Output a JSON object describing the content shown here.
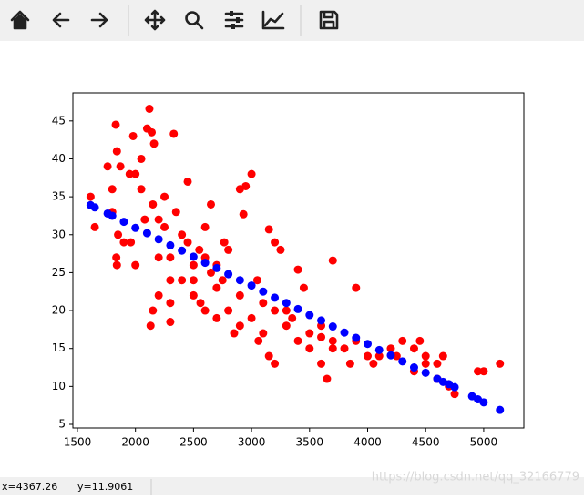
{
  "status": {
    "x_coord": "x=4367.26",
    "y_coord": "y=11.9061",
    "watermark": "https://blog.csdn.net/qq_32166779"
  },
  "chart_data": {
    "type": "scatter",
    "xlim": [
      1461,
      5346
    ],
    "ylim": [
      4.52,
      48.7
    ],
    "xticks": [
      1500,
      2000,
      2500,
      3000,
      3500,
      4000,
      4500,
      5000
    ],
    "yticks": [
      5,
      10,
      15,
      20,
      25,
      30,
      35,
      40,
      45
    ],
    "series": [
      {
        "color": "#ff0000",
        "x": [
          1613,
          1650,
          1760,
          1800,
          1830,
          1840,
          1870,
          1950,
          1980,
          2000,
          2050,
          2100,
          2120,
          2140,
          2160,
          2330,
          1800,
          1850,
          1900,
          1835,
          1840,
          2000,
          2130,
          2200,
          2250,
          2300,
          2400,
          2500,
          2600,
          2650,
          2700,
          2750,
          2800,
          2900,
          2930,
          2950,
          3000,
          3150,
          3200,
          3250,
          3300,
          3400,
          3450,
          3700,
          3900,
          3100,
          3150,
          3200,
          3600,
          3650,
          4100,
          4300,
          4400,
          4500,
          4750,
          4650,
          4950,
          5000,
          5140,
          2200,
          2300,
          2500,
          2600,
          2700,
          2800,
          2900,
          3000,
          3500,
          3700,
          3800,
          3900,
          4000,
          4200,
          3100,
          2400,
          2550,
          2650,
          2450,
          2350,
          2150,
          2050,
          2250,
          2450,
          2600,
          3300,
          3500,
          3400,
          3850,
          4400,
          4600,
          4600,
          1960,
          2080,
          2200,
          2300,
          2500,
          2700,
          2900,
          3200,
          3350,
          3600,
          4050,
          4250,
          4500,
          2765,
          3050,
          3600,
          3700,
          2150,
          2300,
          2560,
          2850,
          3060,
          4450,
          4700
        ],
        "values": [
          35,
          31,
          39,
          36,
          44.5,
          41,
          39,
          38,
          43,
          38,
          40,
          44,
          46.6,
          43.5,
          42,
          43.3,
          33,
          30,
          29,
          27,
          26,
          26,
          18,
          32,
          31,
          27,
          24,
          26,
          31,
          34,
          26,
          24,
          28,
          36,
          32.7,
          36.4,
          38,
          30.7,
          29,
          28,
          20,
          25.4,
          23,
          26.6,
          23,
          17,
          14,
          13,
          13,
          11,
          14,
          16,
          15,
          13,
          9,
          14,
          12,
          12,
          13,
          22,
          21,
          22,
          20,
          19,
          20,
          18,
          19,
          17,
          16,
          15,
          16,
          14,
          15,
          21,
          30,
          28,
          25,
          29,
          33,
          34,
          36,
          35,
          37,
          27,
          18,
          15,
          16,
          13,
          12,
          13,
          11,
          29,
          32,
          27,
          24,
          24,
          23,
          22,
          20,
          19,
          18,
          13,
          14,
          14,
          29,
          24,
          16.5,
          15,
          20,
          18.5,
          21,
          17,
          16,
          16,
          10
        ]
      },
      {
        "color": "#0000ff",
        "x": [
          1613,
          1650,
          1760,
          1800,
          1900,
          2000,
          2100,
          2200,
          2300,
          2400,
          2500,
          2600,
          2700,
          2800,
          2900,
          3000,
          3100,
          3200,
          3300,
          3400,
          3500,
          3600,
          3700,
          3800,
          3900,
          4000,
          4100,
          4200,
          4300,
          4400,
          4500,
          4600,
          4650,
          4700,
          4750,
          4900,
          4950,
          5000,
          5140
        ],
        "values": [
          33.9,
          33.6,
          32.8,
          32.5,
          31.7,
          30.9,
          30.2,
          29.4,
          28.6,
          27.9,
          27.1,
          26.3,
          25.6,
          24.8,
          24.0,
          23.3,
          22.5,
          21.7,
          21.0,
          20.2,
          19.4,
          18.7,
          17.9,
          17.1,
          16.4,
          15.6,
          14.8,
          14.1,
          13.3,
          12.5,
          11.8,
          11.0,
          10.6,
          10.3,
          9.9,
          8.7,
          8.3,
          7.9,
          6.9
        ]
      }
    ]
  }
}
